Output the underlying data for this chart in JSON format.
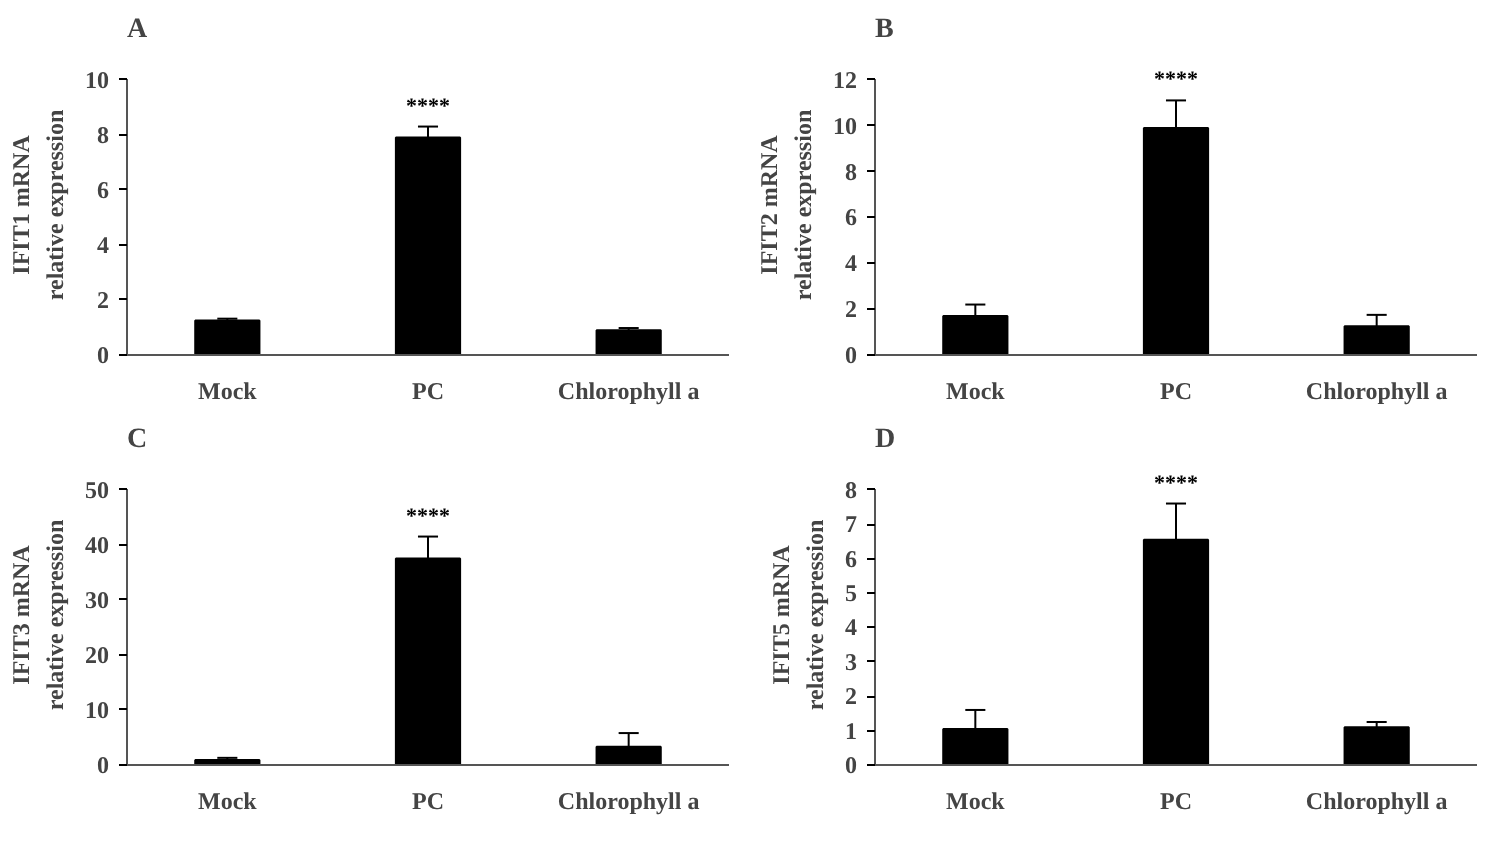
{
  "chart_data": [
    {
      "type": "bar",
      "title": "A",
      "ylabel": "IFIT1 mRNA\nrelative expression",
      "categories": [
        "Mock",
        "PC",
        "Chlorophyll a"
      ],
      "values": [
        1.25,
        7.9,
        0.9
      ],
      "errors": [
        [
          1.25,
          1.32
        ],
        [
          7.9,
          8.3
        ],
        [
          0.9,
          0.98
        ]
      ],
      "color": "#000000",
      "ylim": [
        0,
        10
      ],
      "yticks": [
        0,
        2,
        4,
        6,
        8,
        10
      ],
      "annotations": [
        "****"
      ]
    },
    {
      "type": "bar",
      "title": "B",
      "ylabel": "IFIT2 mRNA\nrelative expression",
      "categories": [
        "Mock",
        "PC",
        "Chlorophyll a"
      ],
      "values": [
        1.7,
        9.9,
        1.25
      ],
      "errors": [
        [
          1.7,
          2.2
        ],
        [
          9.9,
          11.1
        ],
        [
          1.25,
          1.75
        ]
      ],
      "color": "#000000",
      "ylim": [
        0,
        12
      ],
      "yticks": [
        0,
        2,
        4,
        6,
        8,
        10,
        12
      ],
      "annotations": [
        "****"
      ]
    },
    {
      "type": "bar",
      "title": "C",
      "ylabel": "IFIT3 mRNA\nrelative expression",
      "categories": [
        "Mock",
        "PC",
        "Chlorophyll a"
      ],
      "values": [
        0.9,
        37.5,
        3.3
      ],
      "errors": [
        [
          0.9,
          1.3
        ],
        [
          37.5,
          41.5
        ],
        [
          3.3,
          5.8
        ]
      ],
      "color": "#000000",
      "ylim": [
        0,
        50
      ],
      "yticks": [
        0,
        10,
        20,
        30,
        40,
        50
      ],
      "annotations": [
        "****"
      ]
    },
    {
      "type": "bar",
      "title": "D",
      "ylabel": "IFIT5 mRNA\nrelative expression",
      "categories": [
        "Mock",
        "PC",
        "Chlorophyll a"
      ],
      "values": [
        1.05,
        6.55,
        1.1
      ],
      "errors": [
        [
          1.05,
          1.6
        ],
        [
          6.55,
          7.6
        ],
        [
          1.1,
          1.25
        ]
      ],
      "color": "#000000",
      "ylim": [
        0,
        8
      ],
      "yticks": [
        0,
        1,
        2,
        3,
        4,
        5,
        6,
        7,
        8
      ],
      "annotations": [
        "****"
      ]
    }
  ]
}
